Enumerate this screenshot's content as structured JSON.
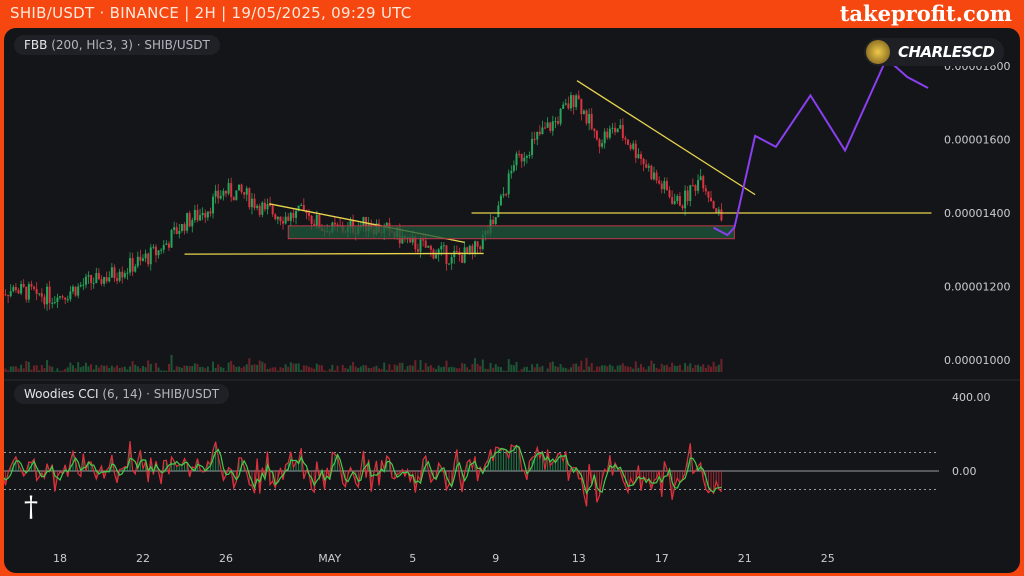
{
  "header": {
    "title": "SHIB/USDT · BINANCE | 2H | 19/05/2025, 09:29 UTC",
    "brand": "takeprofit.com"
  },
  "indicators": {
    "price_label_name": "FBB",
    "price_label_params": "(200, Hlc3, 3) · SHIB/USDT",
    "cci_label_name": "Woodies CCI",
    "cci_label_params": "(6, 14) · SHIB/USDT"
  },
  "author": {
    "name": "CHARLESCD"
  },
  "colors": {
    "up": "#26a65b",
    "down": "#d9343f",
    "trend": "#e8d44d",
    "projection": "#8a3ff0",
    "zone": "#1f5a3c",
    "zone_border": "#c0394a",
    "background": "#141519",
    "frame": "#f5470f"
  },
  "chart_data": {
    "type": "candlestick",
    "symbol": "SHIB/USDT",
    "timeframe": "2H",
    "x_ticks": [
      "18",
      "22",
      "26",
      "MAY",
      "5",
      "9",
      "13",
      "17",
      "21",
      "25"
    ],
    "y_ticks": [
      "0.00001800",
      "0.00001600",
      "0.00001400",
      "0.00001200",
      "0.00001000"
    ],
    "ylim": [
      9.5e-06,
      1.92e-05
    ],
    "daily_close": [
      {
        "date": "2025-04-15",
        "close": 1.19e-05
      },
      {
        "date": "2025-04-16",
        "close": 1.18e-05
      },
      {
        "date": "2025-04-17",
        "close": 1.17e-05
      },
      {
        "date": "2025-04-18",
        "close": 1.2e-05
      },
      {
        "date": "2025-04-19",
        "close": 1.22e-05
      },
      {
        "date": "2025-04-20",
        "close": 1.24e-05
      },
      {
        "date": "2025-04-21",
        "close": 1.27e-05
      },
      {
        "date": "2025-04-22",
        "close": 1.3e-05
      },
      {
        "date": "2025-04-23",
        "close": 1.37e-05
      },
      {
        "date": "2025-04-24",
        "close": 1.4e-05
      },
      {
        "date": "2025-04-25",
        "close": 1.46e-05
      },
      {
        "date": "2025-04-26",
        "close": 1.45e-05
      },
      {
        "date": "2025-04-27",
        "close": 1.41e-05
      },
      {
        "date": "2025-04-28",
        "close": 1.39e-05
      },
      {
        "date": "2025-04-29",
        "close": 1.4e-05
      },
      {
        "date": "2025-04-30",
        "close": 1.35e-05
      },
      {
        "date": "2025-05-01",
        "close": 1.36e-05
      },
      {
        "date": "2025-05-02",
        "close": 1.37e-05
      },
      {
        "date": "2025-05-03",
        "close": 1.35e-05
      },
      {
        "date": "2025-05-04",
        "close": 1.32e-05
      },
      {
        "date": "2025-05-05",
        "close": 1.3e-05
      },
      {
        "date": "2025-05-06",
        "close": 1.28e-05
      },
      {
        "date": "2025-05-07",
        "close": 1.29e-05
      },
      {
        "date": "2025-05-08",
        "close": 1.37e-05
      },
      {
        "date": "2025-05-09",
        "close": 1.53e-05
      },
      {
        "date": "2025-05-10",
        "close": 1.6e-05
      },
      {
        "date": "2025-05-11",
        "close": 1.65e-05
      },
      {
        "date": "2025-05-12",
        "close": 1.72e-05
      },
      {
        "date": "2025-05-13",
        "close": 1.6e-05
      },
      {
        "date": "2025-05-14",
        "close": 1.63e-05
      },
      {
        "date": "2025-05-15",
        "close": 1.56e-05
      },
      {
        "date": "2025-05-16",
        "close": 1.48e-05
      },
      {
        "date": "2025-05-17",
        "close": 1.42e-05
      },
      {
        "date": "2025-05-18",
        "close": 1.5e-05
      },
      {
        "date": "2025-05-19",
        "close": 1.38e-05
      }
    ],
    "annotations": [
      {
        "type": "line",
        "from": [
          "2025-04-24 00:00",
          1.288e-05
        ],
        "to": [
          "2025-05-08 10:00",
          1.29e-05
        ]
      },
      {
        "type": "line",
        "from": [
          "2025-04-28 02:00",
          1.425e-05
        ],
        "to": [
          "2025-05-07 12:00",
          1.32e-05
        ]
      },
      {
        "type": "line",
        "from": [
          "2025-05-07 20:00",
          1.4e-05
        ],
        "to": [
          "2025-05-30 00:00",
          1.4e-05
        ]
      },
      {
        "type": "line",
        "from": [
          "2025-05-12 22:00",
          1.76e-05
        ],
        "to": [
          "2025-05-21 12:00",
          1.45e-05
        ]
      },
      {
        "type": "zone",
        "from": [
          "2025-04-29 00:00",
          1.365e-05
        ],
        "to": [
          "2025-05-20 12:00",
          1.33e-05
        ]
      }
    ],
    "projection": [
      {
        "date": "2025-05-19 12:00",
        "price": 1.36e-05
      },
      {
        "date": "2025-05-20 04:00",
        "price": 1.34e-05
      },
      {
        "date": "2025-05-20 12:00",
        "price": 1.36e-05
      },
      {
        "date": "2025-05-21 12:00",
        "price": 1.61e-05
      },
      {
        "date": "2025-05-22 12:00",
        "price": 1.58e-05
      },
      {
        "date": "2025-05-24 04:00",
        "price": 1.72e-05
      },
      {
        "date": "2025-05-25 20:00",
        "price": 1.57e-05
      },
      {
        "date": "2025-05-27 20:00",
        "price": 1.82e-05
      },
      {
        "date": "2025-05-28 20:00",
        "price": 1.77e-05
      },
      {
        "date": "2025-05-29 20:00",
        "price": 1.74e-05
      }
    ],
    "cci": {
      "y_ticks": [
        "400.00",
        "0.00"
      ],
      "levels": [
        100,
        -100
      ]
    }
  }
}
